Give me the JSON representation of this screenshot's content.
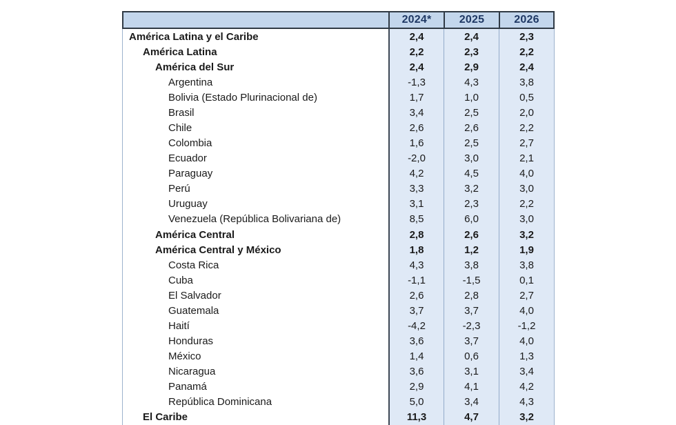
{
  "colors": {
    "header_bg": "#c3d6ec",
    "header_text": "#1f3864",
    "col_bg": "#dfe9f6",
    "border_dark": "#2f3944",
    "sep_dark": "#3d4754",
    "sep_light": "#93aac9",
    "border_light": "#9db2cd",
    "text": "#1a1a1a",
    "page_bg": "#ffffff"
  },
  "table": {
    "columns": [
      "2024*",
      "2025",
      "2026"
    ],
    "rows": [
      {
        "label": "América Latina y el Caribe",
        "level": 0,
        "bold": true,
        "values": [
          "2,4",
          "2,4",
          "2,3"
        ]
      },
      {
        "label": "América Latina",
        "level": 1,
        "bold": true,
        "values": [
          "2,2",
          "2,3",
          "2,2"
        ]
      },
      {
        "label": "América del Sur",
        "level": 2,
        "bold": true,
        "values": [
          "2,4",
          "2,9",
          "2,4"
        ]
      },
      {
        "label": "Argentina",
        "level": 3,
        "bold": false,
        "values": [
          "-1,3",
          "4,3",
          "3,8"
        ]
      },
      {
        "label": "Bolivia (Estado Plurinacional de)",
        "level": 3,
        "bold": false,
        "values": [
          "1,7",
          "1,0",
          "0,5"
        ]
      },
      {
        "label": "Brasil",
        "level": 3,
        "bold": false,
        "values": [
          "3,4",
          "2,5",
          "2,0"
        ]
      },
      {
        "label": "Chile",
        "level": 3,
        "bold": false,
        "values": [
          "2,6",
          "2,6",
          "2,2"
        ]
      },
      {
        "label": "Colombia",
        "level": 3,
        "bold": false,
        "values": [
          "1,6",
          "2,5",
          "2,7"
        ]
      },
      {
        "label": "Ecuador",
        "level": 3,
        "bold": false,
        "values": [
          "-2,0",
          "3,0",
          "2,1"
        ]
      },
      {
        "label": "Paraguay",
        "level": 3,
        "bold": false,
        "values": [
          "4,2",
          "4,5",
          "4,0"
        ]
      },
      {
        "label": "Perú",
        "level": 3,
        "bold": false,
        "values": [
          "3,3",
          "3,2",
          "3,0"
        ]
      },
      {
        "label": "Uruguay",
        "level": 3,
        "bold": false,
        "values": [
          "3,1",
          "2,3",
          "2,2"
        ]
      },
      {
        "label": "Venezuela (República Bolivariana de)",
        "level": 3,
        "bold": false,
        "values": [
          "8,5",
          "6,0",
          "3,0"
        ]
      },
      {
        "label": "América Central",
        "level": 2,
        "bold": true,
        "values": [
          "2,8",
          "2,6",
          "3,2"
        ]
      },
      {
        "label": "América Central y México",
        "level": 2,
        "bold": true,
        "values": [
          "1,8",
          "1,2",
          "1,9"
        ]
      },
      {
        "label": "Costa Rica",
        "level": 3,
        "bold": false,
        "values": [
          "4,3",
          "3,8",
          "3,8"
        ]
      },
      {
        "label": "Cuba",
        "level": 3,
        "bold": false,
        "values": [
          "-1,1",
          "-1,5",
          "0,1"
        ]
      },
      {
        "label": "El Salvador",
        "level": 3,
        "bold": false,
        "values": [
          "2,6",
          "2,8",
          "2,7"
        ]
      },
      {
        "label": "Guatemala",
        "level": 3,
        "bold": false,
        "values": [
          "3,7",
          "3,7",
          "4,0"
        ]
      },
      {
        "label": "Haití",
        "level": 3,
        "bold": false,
        "values": [
          "-4,2",
          "-2,3",
          "-1,2"
        ]
      },
      {
        "label": "Honduras",
        "level": 3,
        "bold": false,
        "values": [
          "3,6",
          "3,7",
          "4,0"
        ]
      },
      {
        "label": "México",
        "level": 3,
        "bold": false,
        "values": [
          "1,4",
          "0,6",
          "1,3"
        ]
      },
      {
        "label": "Nicaragua",
        "level": 3,
        "bold": false,
        "values": [
          "3,6",
          "3,1",
          "3,4"
        ]
      },
      {
        "label": "Panamá",
        "level": 3,
        "bold": false,
        "values": [
          "2,9",
          "4,1",
          "4,2"
        ]
      },
      {
        "label": "República Dominicana",
        "level": 3,
        "bold": false,
        "values": [
          "5,0",
          "3,4",
          "4,3"
        ]
      },
      {
        "label": "El Caribe",
        "level": 1,
        "bold": true,
        "values": [
          "11,3",
          "4,7",
          "3,2"
        ]
      }
    ]
  }
}
